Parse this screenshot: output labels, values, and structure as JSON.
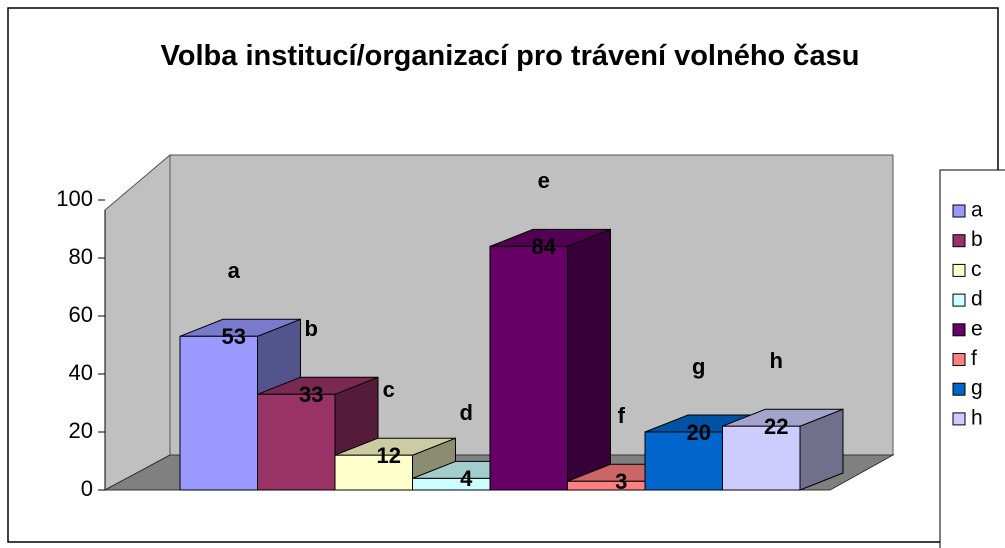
{
  "chart_data": {
    "type": "bar3d",
    "title": "Volba institucí/organizací pro trávení volného času",
    "categories": [
      "a",
      "b",
      "c",
      "d",
      "e",
      "f",
      "g",
      "h"
    ],
    "values": [
      53,
      33,
      12,
      4,
      84,
      3,
      20,
      22
    ],
    "colors": [
      "#9999ff",
      "#993366",
      "#ffffcc",
      "#ccffff",
      "#660066",
      "#ff8080",
      "#0066cc",
      "#ccccff"
    ],
    "ylim": [
      0,
      100
    ],
    "yticks": [
      0,
      20,
      40,
      60,
      80,
      100
    ],
    "legend": "right"
  }
}
